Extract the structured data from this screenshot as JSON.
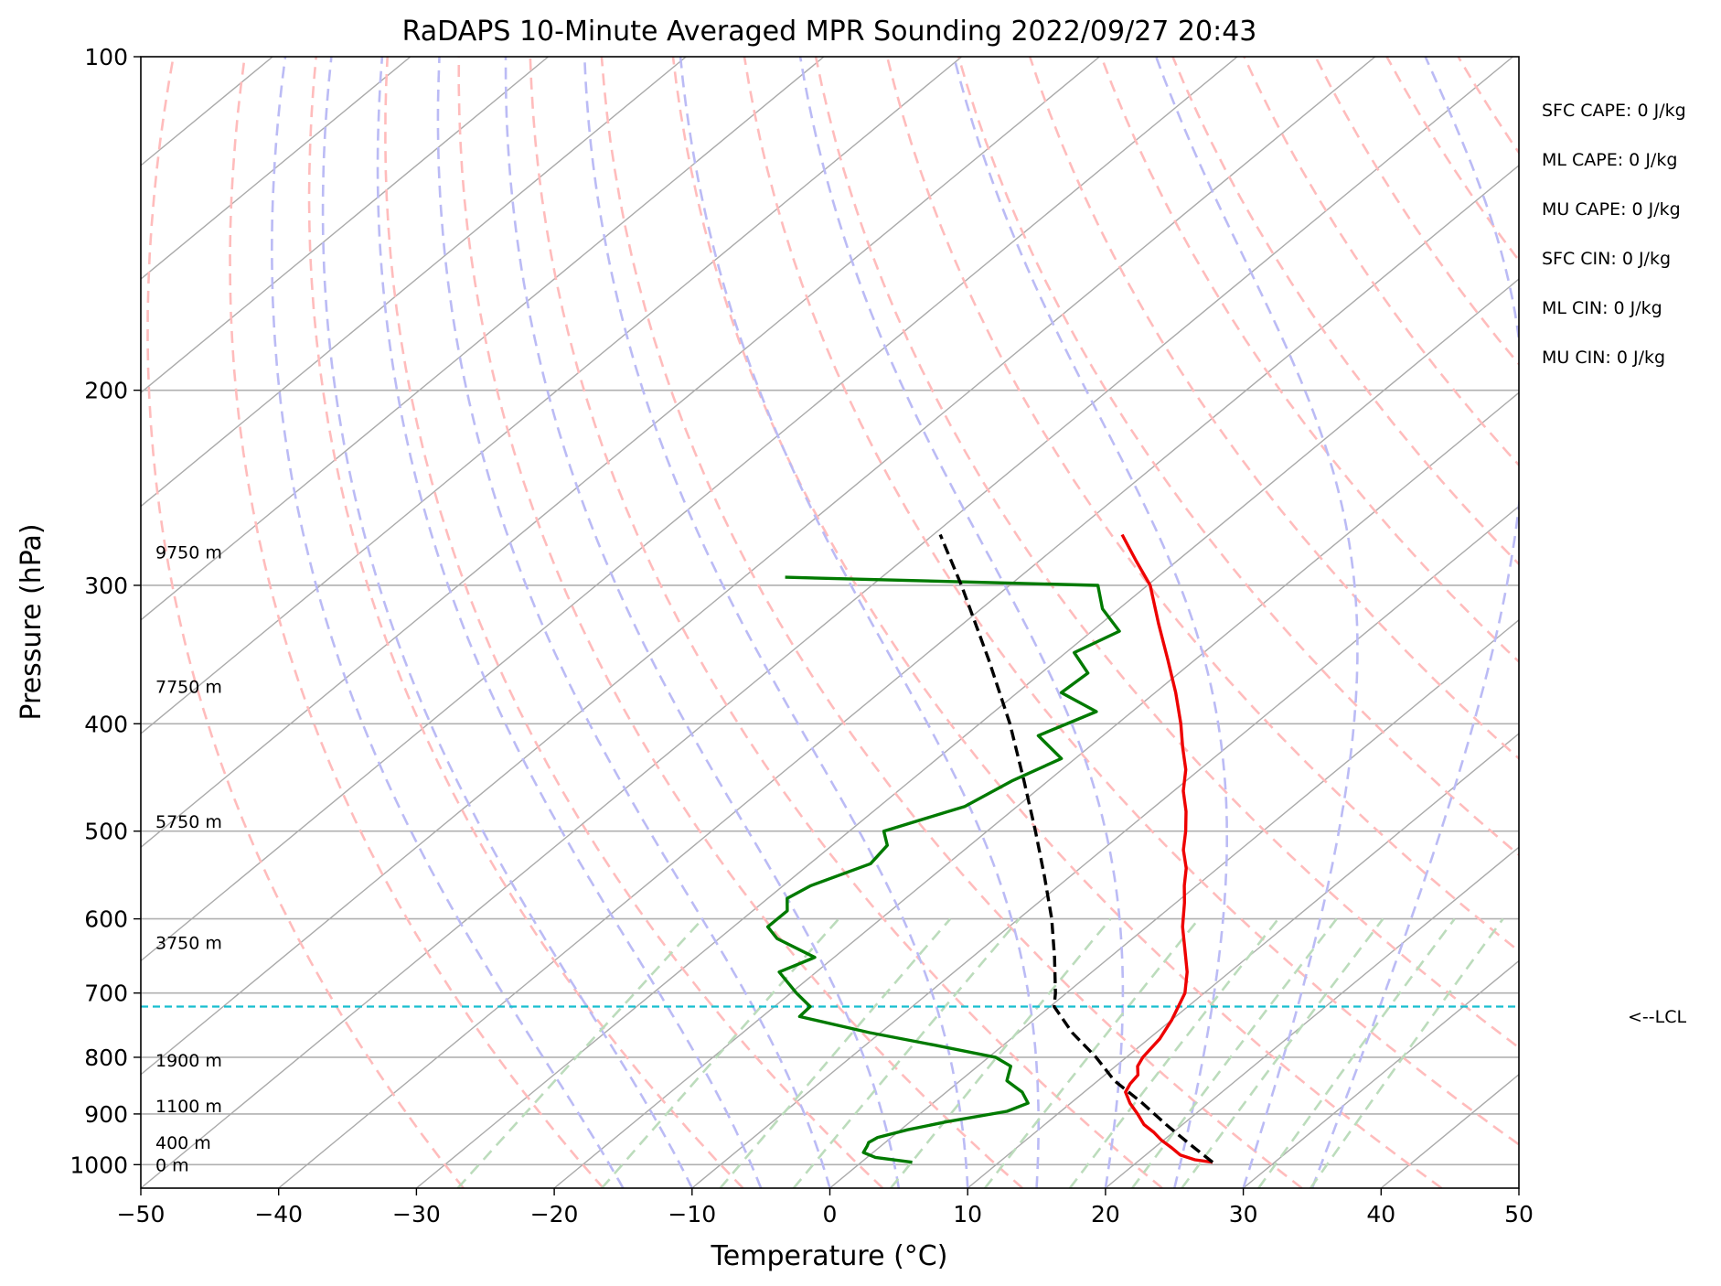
{
  "chart_data": {
    "type": "line",
    "title": "RaDAPS 10-Minute Averaged MPR Sounding 2022/09/27 20:43",
    "xlabel": "Temperature (°C)",
    "ylabel": "Pressure (hPa)",
    "xlim": [
      -50,
      50
    ],
    "ylim": [
      1050,
      100
    ],
    "yscale": "log",
    "skew_t": true,
    "grid": true,
    "x_ticks": [
      -50,
      -40,
      -30,
      -20,
      -10,
      0,
      10,
      20,
      30,
      40,
      50
    ],
    "x_tick_labels": [
      "−50",
      "−40",
      "−30",
      "−20",
      "−10",
      "0",
      "10",
      "20",
      "30",
      "40",
      "50"
    ],
    "y_ticks": [
      1000,
      900,
      800,
      700,
      600,
      500,
      400,
      300,
      200,
      100
    ],
    "y_tick_labels": [
      "1000",
      "900",
      "800",
      "700",
      "600",
      "500",
      "400",
      "300",
      "200",
      "100"
    ],
    "series": [
      {
        "color": "#ee0000",
        "points": [
          {
            "p": 995,
            "t": 25.5
          },
          {
            "p": 990,
            "t": 24.0
          },
          {
            "p": 980,
            "t": 22.5
          },
          {
            "p": 965,
            "t": 21.2
          },
          {
            "p": 950,
            "t": 19.8
          },
          {
            "p": 935,
            "t": 18.6
          },
          {
            "p": 920,
            "t": 17.2
          },
          {
            "p": 900,
            "t": 15.8
          },
          {
            "p": 880,
            "t": 14.3
          },
          {
            "p": 860,
            "t": 13.0
          },
          {
            "p": 845,
            "t": 12.6
          },
          {
            "p": 830,
            "t": 12.4
          },
          {
            "p": 815,
            "t": 11.6
          },
          {
            "p": 800,
            "t": 11.2
          },
          {
            "p": 770,
            "t": 10.8
          },
          {
            "p": 740,
            "t": 10.0
          },
          {
            "p": 700,
            "t": 8.6
          },
          {
            "p": 670,
            "t": 6.9
          },
          {
            "p": 640,
            "t": 4.8
          },
          {
            "p": 610,
            "t": 2.6
          },
          {
            "p": 580,
            "t": 0.6
          },
          {
            "p": 560,
            "t": -0.9
          },
          {
            "p": 540,
            "t": -2.3
          },
          {
            "p": 520,
            "t": -4.1
          },
          {
            "p": 500,
            "t": -5.6
          },
          {
            "p": 480,
            "t": -7.3
          },
          {
            "p": 460,
            "t": -9.3
          },
          {
            "p": 440,
            "t": -11.0
          },
          {
            "p": 420,
            "t": -13.2
          },
          {
            "p": 400,
            "t": -15.4
          },
          {
            "p": 375,
            "t": -18.5
          },
          {
            "p": 350,
            "t": -22.0
          },
          {
            "p": 325,
            "t": -25.8
          },
          {
            "p": 300,
            "t": -29.8
          },
          {
            "p": 285,
            "t": -33.0
          },
          {
            "p": 270,
            "t": -36.3
          }
        ]
      },
      {
        "color": "#007a00",
        "points": [
          {
            "p": 995,
            "t": 3.7
          },
          {
            "p": 985,
            "t": 0.6
          },
          {
            "p": 975,
            "t": -0.7
          },
          {
            "p": 962,
            "t": -1.0
          },
          {
            "p": 955,
            "t": -1.2
          },
          {
            "p": 945,
            "t": -1.0
          },
          {
            "p": 930,
            "t": 0.5
          },
          {
            "p": 915,
            "t": 2.6
          },
          {
            "p": 895,
            "t": 6.1
          },
          {
            "p": 880,
            "t": 6.9
          },
          {
            "p": 860,
            "t": 5.5
          },
          {
            "p": 840,
            "t": 3.4
          },
          {
            "p": 830,
            "t": 3.0
          },
          {
            "p": 815,
            "t": 2.4
          },
          {
            "p": 800,
            "t": 0.5
          },
          {
            "p": 780,
            "t": -5.0
          },
          {
            "p": 760,
            "t": -10.8
          },
          {
            "p": 735,
            "t": -17.3
          },
          {
            "p": 720,
            "t": -17.4
          },
          {
            "p": 700,
            "t": -19.6
          },
          {
            "p": 670,
            "t": -22.7
          },
          {
            "p": 650,
            "t": -21.4
          },
          {
            "p": 625,
            "t": -25.8
          },
          {
            "p": 610,
            "t": -27.5
          },
          {
            "p": 590,
            "t": -27.5
          },
          {
            "p": 575,
            "t": -28.6
          },
          {
            "p": 560,
            "t": -28.0
          },
          {
            "p": 535,
            "t": -25.6
          },
          {
            "p": 515,
            "t": -26.0
          },
          {
            "p": 500,
            "t": -27.5
          },
          {
            "p": 475,
            "t": -23.8
          },
          {
            "p": 450,
            "t": -22.6
          },
          {
            "p": 430,
            "t": -21.0
          },
          {
            "p": 410,
            "t": -24.7
          },
          {
            "p": 390,
            "t": -22.6
          },
          {
            "p": 375,
            "t": -26.8
          },
          {
            "p": 360,
            "t": -26.6
          },
          {
            "p": 345,
            "t": -29.4
          },
          {
            "p": 330,
            "t": -28.0
          },
          {
            "p": 315,
            "t": -31.2
          },
          {
            "p": 300,
            "t": -33.6
          },
          {
            "p": 295,
            "t": -57.0
          }
        ]
      },
      {
        "color": "#000000",
        "dashed": true,
        "points": [
          {
            "p": 995,
            "t": 25.5
          },
          {
            "p": 960,
            "t": 22.4
          },
          {
            "p": 920,
            "t": 18.8
          },
          {
            "p": 880,
            "t": 15.2
          },
          {
            "p": 840,
            "t": 11.2
          },
          {
            "p": 800,
            "t": 7.8
          },
          {
            "p": 760,
            "t": 3.9
          },
          {
            "p": 720,
            "t": 0.3
          },
          {
            "p": 700,
            "t": -0.8
          },
          {
            "p": 650,
            "t": -4.0
          },
          {
            "p": 600,
            "t": -7.6
          },
          {
            "p": 550,
            "t": -11.8
          },
          {
            "p": 500,
            "t": -16.5
          },
          {
            "p": 450,
            "t": -21.8
          },
          {
            "p": 400,
            "t": -27.8
          },
          {
            "p": 350,
            "t": -35.0
          },
          {
            "p": 300,
            "t": -43.5
          },
          {
            "p": 270,
            "t": -49.5
          }
        ]
      }
    ],
    "lcl": {
      "p": 720,
      "label": "<--LCL",
      "color": "#17becf"
    },
    "height_labels": [
      {
        "p": 1000,
        "label": "0 m"
      },
      {
        "p": 955,
        "label": "400 m"
      },
      {
        "p": 885,
        "label": "1100 m"
      },
      {
        "p": 805,
        "label": "1900 m"
      },
      {
        "p": 630,
        "label": "3750 m"
      },
      {
        "p": 490,
        "label": "5750 m"
      },
      {
        "p": 370,
        "label": "7750 m"
      },
      {
        "p": 280,
        "label": "9750 m"
      }
    ],
    "stats": [
      "SFC CAPE: 0 J/kg",
      "ML CAPE: 0 J/kg",
      "MU CAPE: 0 J/kg",
      "SFC CIN: 0 J/kg",
      "ML CIN: 0 J/kg",
      "MU CIN: 0 J/kg"
    ],
    "background_line_colors": {
      "isotherm": "#aaaaaa",
      "dry_adiabat": "#ffbcbc",
      "moist_adiabat": "#bbbbf5",
      "mixing_ratio": "#bcdcbc",
      "isobar": "#b0b0b0"
    }
  }
}
